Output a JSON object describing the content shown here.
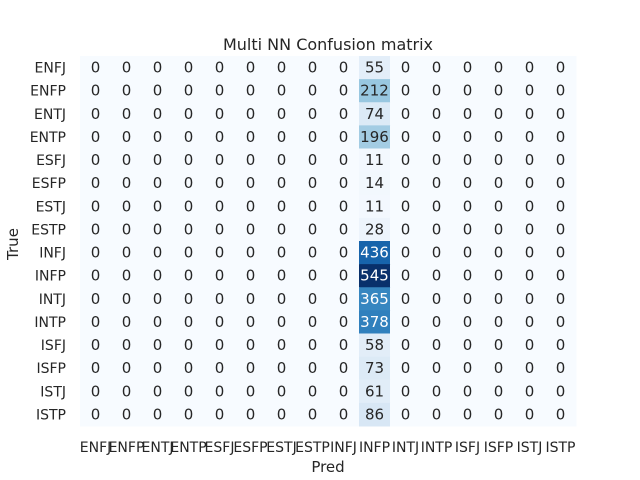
{
  "chart_data": {
    "type": "heatmap",
    "title": "Multi NN Confusion matrix",
    "xlabel": "Pred",
    "ylabel": "True",
    "x_categories": [
      "ENFJ",
      "ENFP",
      "ENTJ",
      "ENTP",
      "ESFJ",
      "ESFP",
      "ESTJ",
      "ESTP",
      "INFJ",
      "INFP",
      "INTJ",
      "INTP",
      "ISFJ",
      "ISFP",
      "ISTJ",
      "ISTP"
    ],
    "y_categories": [
      "ENFJ",
      "ENFP",
      "ENTJ",
      "ENTP",
      "ESFJ",
      "ESFP",
      "ESTJ",
      "ESTP",
      "INFJ",
      "INFP",
      "INTJ",
      "INTP",
      "ISFJ",
      "ISFP",
      "ISTJ",
      "ISTP"
    ],
    "matrix": [
      [
        0,
        0,
        0,
        0,
        0,
        0,
        0,
        0,
        0,
        55,
        0,
        0,
        0,
        0,
        0,
        0
      ],
      [
        0,
        0,
        0,
        0,
        0,
        0,
        0,
        0,
        0,
        212,
        0,
        0,
        0,
        0,
        0,
        0
      ],
      [
        0,
        0,
        0,
        0,
        0,
        0,
        0,
        0,
        0,
        74,
        0,
        0,
        0,
        0,
        0,
        0
      ],
      [
        0,
        0,
        0,
        0,
        0,
        0,
        0,
        0,
        0,
        196,
        0,
        0,
        0,
        0,
        0,
        0
      ],
      [
        0,
        0,
        0,
        0,
        0,
        0,
        0,
        0,
        0,
        11,
        0,
        0,
        0,
        0,
        0,
        0
      ],
      [
        0,
        0,
        0,
        0,
        0,
        0,
        0,
        0,
        0,
        14,
        0,
        0,
        0,
        0,
        0,
        0
      ],
      [
        0,
        0,
        0,
        0,
        0,
        0,
        0,
        0,
        0,
        11,
        0,
        0,
        0,
        0,
        0,
        0
      ],
      [
        0,
        0,
        0,
        0,
        0,
        0,
        0,
        0,
        0,
        28,
        0,
        0,
        0,
        0,
        0,
        0
      ],
      [
        0,
        0,
        0,
        0,
        0,
        0,
        0,
        0,
        0,
        436,
        0,
        0,
        0,
        0,
        0,
        0
      ],
      [
        0,
        0,
        0,
        0,
        0,
        0,
        0,
        0,
        0,
        545,
        0,
        0,
        0,
        0,
        0,
        0
      ],
      [
        0,
        0,
        0,
        0,
        0,
        0,
        0,
        0,
        0,
        365,
        0,
        0,
        0,
        0,
        0,
        0
      ],
      [
        0,
        0,
        0,
        0,
        0,
        0,
        0,
        0,
        0,
        378,
        0,
        0,
        0,
        0,
        0,
        0
      ],
      [
        0,
        0,
        0,
        0,
        0,
        0,
        0,
        0,
        0,
        58,
        0,
        0,
        0,
        0,
        0,
        0
      ],
      [
        0,
        0,
        0,
        0,
        0,
        0,
        0,
        0,
        0,
        73,
        0,
        0,
        0,
        0,
        0,
        0
      ],
      [
        0,
        0,
        0,
        0,
        0,
        0,
        0,
        0,
        0,
        61,
        0,
        0,
        0,
        0,
        0,
        0
      ],
      [
        0,
        0,
        0,
        0,
        0,
        0,
        0,
        0,
        0,
        86,
        0,
        0,
        0,
        0,
        0,
        0
      ]
    ],
    "colormap": "Blues",
    "colorbar": false,
    "grid": false
  }
}
